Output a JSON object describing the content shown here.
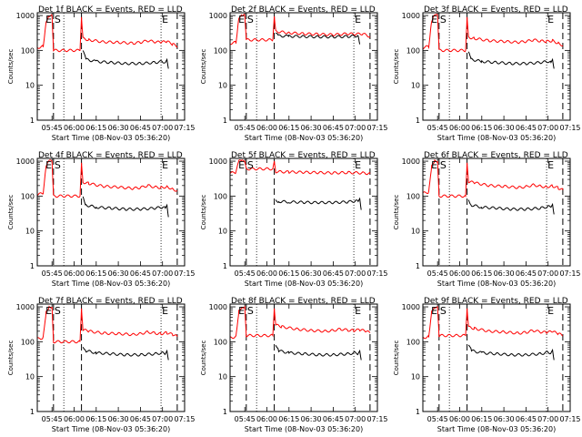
{
  "chart_data": [
    {
      "type": "line",
      "title": "Det 1f BLACK = Events, RED = LLD",
      "ylabel": "Counts/sec",
      "xlabel": "Start Time (08-Nov-03 05:36:20)",
      "x_ticks": [
        "05:45",
        "06:00",
        "06:15",
        "06:30",
        "06:45",
        "07:00",
        "07:15"
      ],
      "y_ticks": [
        "1",
        "10",
        "100",
        "1000"
      ],
      "yscale": "log",
      "ylim": [
        1,
        1200
      ],
      "xlim": [
        0,
        100
      ],
      "markers": {
        "E": [
          5,
          84
        ],
        "S": [
          11
        ]
      },
      "dashed_lines": [
        11,
        30,
        95
      ],
      "dotted_lines": [
        18,
        84
      ],
      "series": [
        {
          "color": "#ff0000",
          "x": [
            0,
            4,
            6,
            8,
            10,
            11,
            29,
            30,
            31,
            35,
            45,
            55,
            65,
            70,
            75,
            80,
            84,
            88,
            92,
            95
          ],
          "y": [
            120,
            130,
            700,
            1000,
            1000,
            100,
            100,
            900,
            220,
            200,
            175,
            170,
            160,
            170,
            190,
            175,
            170,
            180,
            150,
            130
          ]
        },
        {
          "color": "#000000",
          "x": [
            31,
            33,
            40,
            50,
            60,
            70,
            80,
            85,
            87,
            88,
            89
          ],
          "y": [
            100,
            55,
            48,
            45,
            42,
            42,
            45,
            48,
            45,
            55,
            30
          ]
        }
      ]
    },
    {
      "type": "line",
      "title": "Det 2f BLACK = Events, RED = LLD",
      "ylabel": "Counts/sec",
      "xlabel": "Start Time (08-Nov-03 05:36:20)",
      "x_ticks": [
        "05:45",
        "06:00",
        "06:15",
        "06:30",
        "06:45",
        "07:00",
        "07:15"
      ],
      "y_ticks": [
        "1",
        "10",
        "100",
        "1000"
      ],
      "yscale": "log",
      "ylim": [
        1,
        1200
      ],
      "xlim": [
        0,
        100
      ],
      "markers": {
        "E": [
          5,
          84
        ],
        "S": [
          11
        ]
      },
      "dashed_lines": [
        11,
        30,
        95
      ],
      "dotted_lines": [
        18,
        84
      ],
      "series": [
        {
          "color": "#ff0000",
          "x": [
            0,
            4,
            6,
            8,
            10,
            11,
            29,
            30,
            31,
            40,
            50,
            60,
            70,
            80,
            85,
            90,
            95
          ],
          "y": [
            160,
            170,
            900,
            1000,
            1000,
            200,
            200,
            950,
            350,
            320,
            300,
            290,
            280,
            300,
            290,
            300,
            250
          ]
        },
        {
          "color": "#000000",
          "x": [
            31,
            33,
            40,
            50,
            60,
            70,
            80,
            85,
            87,
            88
          ],
          "y": [
            300,
            260,
            255,
            250,
            245,
            245,
            250,
            260,
            260,
            150
          ]
        }
      ]
    },
    {
      "type": "line",
      "title": "Det 3f BLACK = Events, RED = LLD",
      "ylabel": "Counts/sec",
      "xlabel": "Start Time (08-Nov-03 05:36:20)",
      "x_ticks": [
        "05:45",
        "06:00",
        "06:15",
        "06:30",
        "06:45",
        "07:00",
        "07:15"
      ],
      "y_ticks": [
        "1",
        "10",
        "100",
        "1000"
      ],
      "yscale": "log",
      "ylim": [
        1,
        1200
      ],
      "xlim": [
        0,
        100
      ],
      "markers": {
        "E": [
          5,
          84
        ],
        "S": [
          11
        ]
      },
      "dashed_lines": [
        11,
        30,
        95
      ],
      "dotted_lines": [
        18,
        84
      ],
      "series": [
        {
          "color": "#ff0000",
          "x": [
            0,
            4,
            6,
            8,
            10,
            11,
            29,
            30,
            31,
            35,
            45,
            55,
            65,
            70,
            75,
            80,
            84,
            88,
            92,
            95
          ],
          "y": [
            120,
            130,
            700,
            1000,
            1000,
            100,
            100,
            900,
            240,
            220,
            190,
            180,
            170,
            180,
            200,
            185,
            180,
            190,
            160,
            140
          ]
        },
        {
          "color": "#000000",
          "x": [
            31,
            33,
            40,
            50,
            60,
            70,
            80,
            85,
            87,
            88,
            89
          ],
          "y": [
            85,
            55,
            48,
            45,
            42,
            42,
            45,
            48,
            45,
            55,
            30
          ]
        }
      ]
    },
    {
      "type": "line",
      "title": "Det 4f BLACK = Events, RED = LLD",
      "ylabel": "Counts/sec",
      "xlabel": "Start Time (08-Nov-03 05:36:20)",
      "x_ticks": [
        "05:45",
        "06:00",
        "06:15",
        "06:30",
        "06:45",
        "07:00",
        "07:15"
      ],
      "y_ticks": [
        "1",
        "10",
        "100",
        "1000"
      ],
      "yscale": "log",
      "ylim": [
        1,
        1200
      ],
      "xlim": [
        0,
        100
      ],
      "markers": {
        "E": [
          5,
          84
        ],
        "S": [
          11
        ]
      },
      "dashed_lines": [
        11,
        30,
        95
      ],
      "dotted_lines": [
        18,
        84
      ],
      "series": [
        {
          "color": "#ff0000",
          "x": [
            0,
            4,
            6,
            8,
            10,
            11,
            29,
            30,
            31,
            35,
            45,
            55,
            65,
            70,
            75,
            80,
            84,
            88,
            92,
            95
          ],
          "y": [
            110,
            120,
            700,
            1000,
            1000,
            100,
            100,
            900,
            250,
            230,
            190,
            180,
            165,
            175,
            200,
            180,
            175,
            185,
            160,
            140
          ]
        },
        {
          "color": "#000000",
          "x": [
            31,
            33,
            40,
            50,
            60,
            70,
            80,
            85,
            87,
            88,
            89
          ],
          "y": [
            90,
            55,
            48,
            45,
            42,
            42,
            45,
            48,
            45,
            55,
            25
          ]
        }
      ]
    },
    {
      "type": "line",
      "title": "Det 5f BLACK = Events, RED = LLD",
      "ylabel": "Counts/sec",
      "xlabel": "Start Time (08-Nov-03 05:36:20)",
      "x_ticks": [
        "05:45",
        "06:00",
        "06:15",
        "06:30",
        "06:45",
        "07:00",
        "07:15"
      ],
      "y_ticks": [
        "1",
        "10",
        "100",
        "1000"
      ],
      "yscale": "log",
      "ylim": [
        1,
        1200
      ],
      "xlim": [
        0,
        100
      ],
      "markers": {
        "E": [
          5,
          84
        ],
        "S": [
          11
        ]
      },
      "dashed_lines": [
        11,
        30,
        95
      ],
      "dotted_lines": [
        18,
        84
      ],
      "series": [
        {
          "color": "#ff0000",
          "x": [
            0,
            4,
            6,
            8,
            10,
            11,
            29,
            30,
            31,
            40,
            50,
            60,
            70,
            80,
            90,
            95
          ],
          "y": [
            450,
            480,
            1000,
            1000,
            1000,
            600,
            600,
            1000,
            500,
            490,
            480,
            470,
            460,
            470,
            460,
            440
          ]
        },
        {
          "color": "#000000",
          "x": [
            31,
            33,
            40,
            50,
            60,
            70,
            80,
            85,
            87,
            88,
            89
          ],
          "y": [
            75,
            70,
            68,
            66,
            65,
            65,
            68,
            72,
            70,
            85,
            40
          ]
        }
      ]
    },
    {
      "type": "line",
      "title": "Det 6f BLACK = Events, RED = LLD",
      "ylabel": "Counts/sec",
      "xlabel": "Start Time (08-Nov-03 05:36:20)",
      "x_ticks": [
        "05:45",
        "06:00",
        "06:15",
        "06:30",
        "06:45",
        "07:00",
        "07:15"
      ],
      "y_ticks": [
        "1",
        "10",
        "100",
        "1000"
      ],
      "yscale": "log",
      "ylim": [
        1,
        1200
      ],
      "xlim": [
        0,
        100
      ],
      "markers": {
        "E": [
          5,
          84
        ],
        "S": [
          11
        ]
      },
      "dashed_lines": [
        11,
        30,
        95
      ],
      "dotted_lines": [
        18,
        84
      ],
      "series": [
        {
          "color": "#ff0000",
          "x": [
            0,
            4,
            6,
            8,
            10,
            11,
            29,
            30,
            31,
            35,
            45,
            55,
            65,
            70,
            75,
            80,
            84,
            88,
            92,
            95
          ],
          "y": [
            120,
            130,
            700,
            1000,
            1000,
            100,
            100,
            900,
            260,
            240,
            200,
            190,
            175,
            185,
            210,
            190,
            185,
            195,
            170,
            150
          ]
        },
        {
          "color": "#000000",
          "x": [
            31,
            33,
            40,
            50,
            60,
            70,
            80,
            85,
            87,
            88,
            89
          ],
          "y": [
            80,
            55,
            48,
            45,
            42,
            42,
            45,
            50,
            48,
            58,
            30
          ]
        }
      ]
    },
    {
      "type": "line",
      "title": "Det 7f BLACK = Events, RED = LLD",
      "ylabel": "Counts/sec",
      "xlabel": "Start Time (08-Nov-03 05:36:20)",
      "x_ticks": [
        "05:45",
        "06:00",
        "06:15",
        "06:30",
        "06:45",
        "07:00",
        "07:15"
      ],
      "y_ticks": [
        "1",
        "10",
        "100",
        "1000"
      ],
      "yscale": "log",
      "ylim": [
        1,
        1200
      ],
      "xlim": [
        0,
        100
      ],
      "markers": {
        "E": [
          5,
          84
        ],
        "S": [
          11
        ]
      },
      "dashed_lines": [
        11,
        30,
        95
      ],
      "dotted_lines": [
        18,
        84
      ],
      "series": [
        {
          "color": "#ff0000",
          "x": [
            0,
            4,
            6,
            8,
            10,
            11,
            29,
            30,
            31,
            35,
            45,
            55,
            65,
            70,
            75,
            80,
            84,
            88,
            92,
            95
          ],
          "y": [
            120,
            130,
            700,
            1000,
            1000,
            100,
            100,
            900,
            220,
            200,
            175,
            170,
            160,
            170,
            190,
            175,
            170,
            180,
            160,
            140
          ]
        },
        {
          "color": "#000000",
          "x": [
            31,
            33,
            40,
            50,
            60,
            70,
            80,
            85,
            87,
            88,
            89
          ],
          "y": [
            75,
            55,
            48,
            45,
            42,
            42,
            45,
            48,
            45,
            55,
            30
          ]
        }
      ]
    },
    {
      "type": "line",
      "title": "Det 8f BLACK = Events, RED = LLD",
      "ylabel": "Counts/sec",
      "xlabel": "Start Time (08-Nov-03 05:36:20)",
      "x_ticks": [
        "05:45",
        "06:00",
        "06:15",
        "06:30",
        "06:45",
        "07:00",
        "07:15"
      ],
      "y_ticks": [
        "1",
        "10",
        "100",
        "1000"
      ],
      "yscale": "log",
      "ylim": [
        1,
        1200
      ],
      "xlim": [
        0,
        100
      ],
      "markers": {
        "E": [
          5,
          84
        ],
        "S": [
          11
        ]
      },
      "dashed_lines": [
        11,
        30,
        95
      ],
      "dotted_lines": [
        18,
        84
      ],
      "series": [
        {
          "color": "#ff0000",
          "x": [
            0,
            4,
            6,
            8,
            10,
            11,
            29,
            30,
            31,
            35,
            45,
            55,
            65,
            70,
            75,
            80,
            84,
            88,
            92,
            95
          ],
          "y": [
            130,
            140,
            800,
            1000,
            1000,
            150,
            150,
            900,
            300,
            270,
            230,
            210,
            200,
            210,
            230,
            215,
            210,
            220,
            200,
            180
          ]
        },
        {
          "color": "#000000",
          "x": [
            31,
            33,
            40,
            50,
            60,
            70,
            80,
            85,
            87,
            88,
            89
          ],
          "y": [
            85,
            55,
            48,
            45,
            42,
            42,
            45,
            48,
            46,
            55,
            30
          ]
        }
      ]
    },
    {
      "type": "line",
      "title": "Det 9f BLACK = Events, RED = LLD",
      "ylabel": "Counts/sec",
      "xlabel": "Start Time (08-Nov-03 05:36:20)",
      "x_ticks": [
        "05:45",
        "06:00",
        "06:15",
        "06:30",
        "06:45",
        "07:00",
        "07:15"
      ],
      "y_ticks": [
        "1",
        "10",
        "100",
        "1000"
      ],
      "yscale": "log",
      "ylim": [
        1,
        1200
      ],
      "xlim": [
        0,
        100
      ],
      "markers": {
        "E": [
          5,
          84
        ],
        "S": [
          11
        ]
      },
      "dashed_lines": [
        11,
        30,
        95
      ],
      "dotted_lines": [
        18,
        84
      ],
      "series": [
        {
          "color": "#ff0000",
          "x": [
            0,
            4,
            6,
            8,
            10,
            11,
            29,
            30,
            31,
            35,
            45,
            55,
            65,
            70,
            75,
            80,
            84,
            88,
            92,
            95
          ],
          "y": [
            130,
            140,
            800,
            1000,
            1000,
            150,
            150,
            900,
            260,
            240,
            200,
            190,
            175,
            185,
            210,
            190,
            185,
            195,
            170,
            150
          ]
        },
        {
          "color": "#000000",
          "x": [
            31,
            33,
            40,
            50,
            60,
            70,
            80,
            85,
            87,
            88,
            89
          ],
          "y": [
            85,
            55,
            48,
            45,
            42,
            42,
            45,
            50,
            48,
            58,
            30
          ]
        }
      ]
    }
  ]
}
